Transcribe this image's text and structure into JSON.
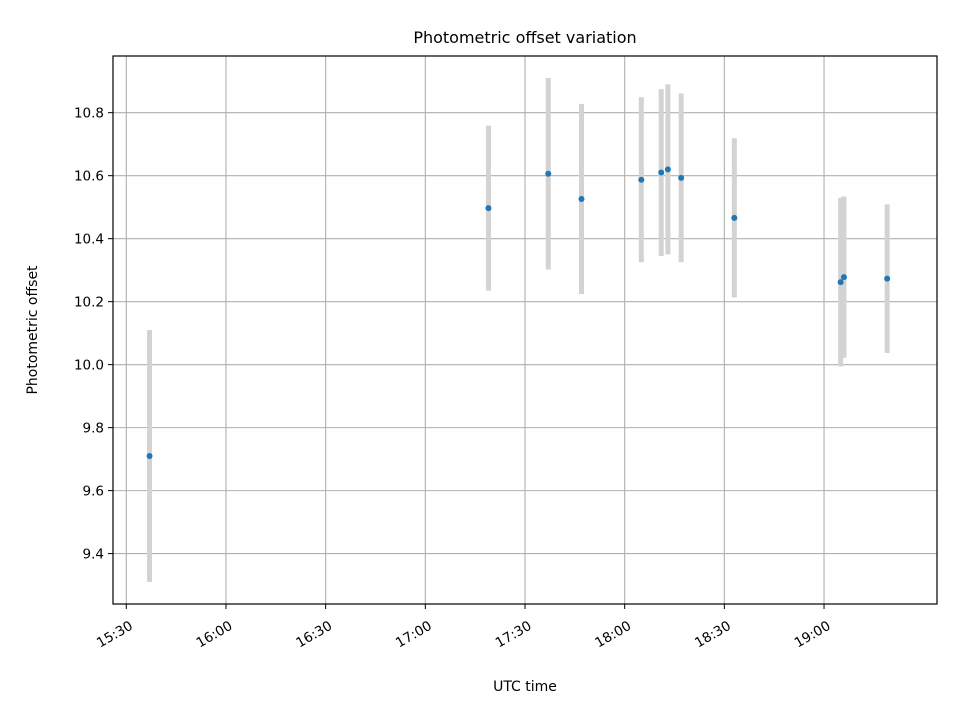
{
  "chart_data": {
    "type": "scatter",
    "title": "Photometric offset variation",
    "xlabel": "UTC time",
    "ylabel": "Photometric offset",
    "grid": true,
    "xlim": [
      "15:26",
      "19:34"
    ],
    "ylim": [
      9.24,
      10.98
    ],
    "x_ticks": [
      "15:30",
      "16:00",
      "16:30",
      "17:00",
      "17:30",
      "18:00",
      "18:30",
      "19:00"
    ],
    "y_ticks": [
      "9.4",
      "9.6",
      "9.8",
      "10.0",
      "10.2",
      "10.4",
      "10.6",
      "10.8"
    ],
    "colors": {
      "point": "#1f77b4",
      "errorbar": "#d3d3d3",
      "grid": "#b0b0b0"
    },
    "points": [
      {
        "time": "15:37",
        "y": 9.71,
        "yerr": 0.4
      },
      {
        "time": "17:19",
        "y": 10.497,
        "yerr": 0.262
      },
      {
        "time": "17:37",
        "y": 10.606,
        "yerr": 0.304
      },
      {
        "time": "17:47",
        "y": 10.526,
        "yerr": 0.302
      },
      {
        "time": "18:05",
        "y": 10.587,
        "yerr": 0.262
      },
      {
        "time": "18:11",
        "y": 10.61,
        "yerr": 0.265
      },
      {
        "time": "18:13",
        "y": 10.62,
        "yerr": 0.27
      },
      {
        "time": "18:17",
        "y": 10.593,
        "yerr": 0.268
      },
      {
        "time": "18:33",
        "y": 10.466,
        "yerr": 0.253
      },
      {
        "time": "19:05",
        "y": 10.262,
        "yerr": 0.268
      },
      {
        "time": "19:06",
        "y": 10.278,
        "yerr": 0.256
      },
      {
        "time": "19:19",
        "y": 10.273,
        "yerr": 0.236
      }
    ]
  }
}
